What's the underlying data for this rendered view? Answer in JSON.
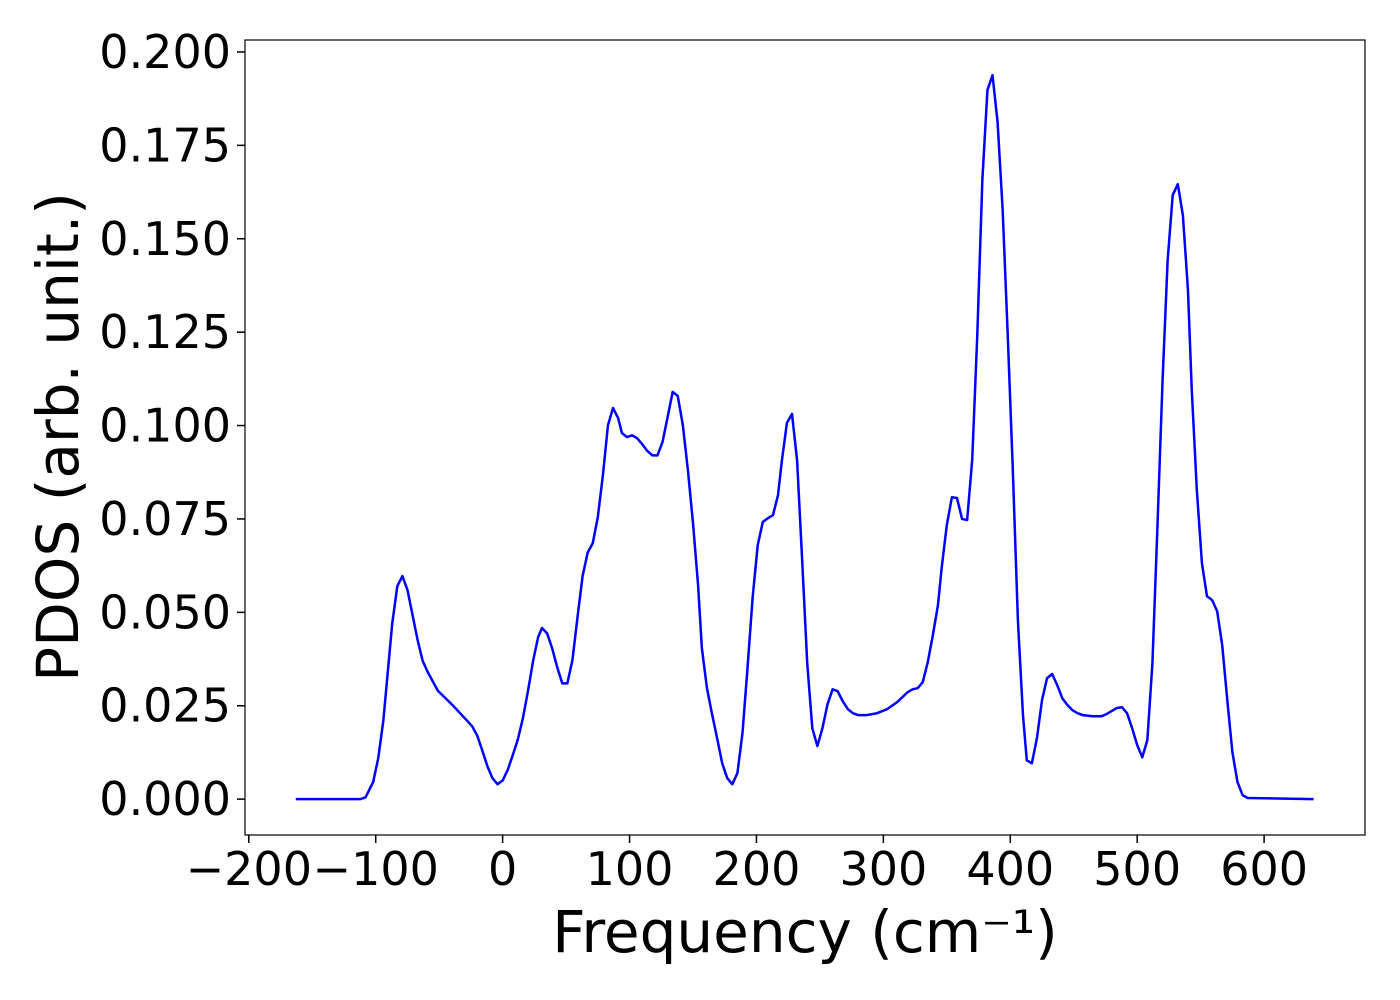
{
  "chart_data": {
    "type": "line",
    "xlabel": "Frequency (cm⁻¹)",
    "ylabel": "PDOS (arb. unit.)",
    "xlim": [
      -203,
      679.5
    ],
    "ylim": [
      -0.0096,
      0.2032
    ],
    "xticks": [
      {
        "value": -200,
        "label": "−200"
      },
      {
        "value": -100,
        "label": "−100"
      },
      0,
      100,
      200,
      300,
      400,
      500,
      600
    ],
    "yticks": [
      {
        "value": 0,
        "label": "0.000"
      },
      {
        "value": 0.025,
        "label": "0.025"
      },
      {
        "value": 0.05,
        "label": "0.050"
      },
      {
        "value": 0.075,
        "label": "0.075"
      },
      {
        "value": 0.1,
        "label": "0.100"
      },
      {
        "value": 0.125,
        "label": "0.125"
      },
      {
        "value": 0.15,
        "label": "0.150"
      },
      {
        "value": 0.175,
        "label": "0.175"
      },
      {
        "value": 0.2,
        "label": "0.200"
      }
    ],
    "x": [
      -163,
      -112,
      -108,
      -102,
      -98,
      -94,
      -87,
      -83,
      -79,
      -75,
      -67,
      -63,
      -59,
      -51,
      -39,
      -28,
      -24,
      -20,
      -16,
      -12,
      -8,
      -4,
      0,
      4,
      8,
      12,
      16,
      20,
      24,
      28,
      31,
      35,
      39,
      43,
      47,
      51,
      55,
      59,
      63,
      67,
      71,
      75,
      79,
      83,
      87,
      91,
      94,
      98,
      102,
      106,
      110,
      114,
      118,
      122,
      126,
      130,
      134,
      138,
      142,
      146,
      150,
      154,
      157,
      161,
      165,
      169,
      173,
      177,
      181,
      185,
      189,
      193,
      197,
      201,
      205,
      209,
      213,
      217,
      220,
      224,
      228,
      232,
      236,
      240,
      244,
      248,
      252,
      256,
      260,
      264,
      268,
      272,
      276,
      280,
      287,
      295,
      303,
      311,
      319,
      323,
      327,
      331,
      335,
      339,
      343,
      346,
      350,
      354,
      358,
      362,
      366,
      370,
      374,
      378,
      382,
      386,
      390,
      394,
      398,
      402,
      406,
      410,
      413,
      417,
      421,
      425,
      429,
      433,
      437,
      441,
      445,
      449,
      453,
      457,
      465,
      472,
      476,
      480,
      484,
      488,
      492,
      496,
      500,
      504,
      508,
      512,
      516,
      520,
      524,
      528,
      532,
      536,
      540,
      543,
      547,
      551,
      555,
      559,
      563,
      567,
      571,
      575,
      579,
      583,
      587,
      639
    ],
    "series": [
      {
        "color": "#0000ff",
        "values": [
          0,
          0,
          0.0005,
          0.0046,
          0.011,
          0.021,
          0.047,
          0.057,
          0.0597,
          0.056,
          0.0426,
          0.037,
          0.034,
          0.029,
          0.025,
          0.021,
          0.0195,
          0.017,
          0.013,
          0.0088,
          0.0056,
          0.004,
          0.005,
          0.0078,
          0.0118,
          0.016,
          0.0217,
          0.029,
          0.037,
          0.0434,
          0.0458,
          0.0444,
          0.0404,
          0.0353,
          0.031,
          0.031,
          0.0372,
          0.0487,
          0.0597,
          0.066,
          0.0685,
          0.0755,
          0.0867,
          0.1001,
          0.1047,
          0.102,
          0.098,
          0.0969,
          0.0974,
          0.0966,
          0.095,
          0.0932,
          0.092,
          0.092,
          0.0956,
          0.1023,
          0.109,
          0.1079,
          0.1001,
          0.088,
          0.0739,
          0.0573,
          0.0404,
          0.0297,
          0.0228,
          0.0163,
          0.0096,
          0.0056,
          0.004,
          0.007,
          0.0177,
          0.0353,
          0.054,
          0.068,
          0.0742,
          0.0752,
          0.076,
          0.0814,
          0.0905,
          0.1007,
          0.1031,
          0.0908,
          0.064,
          0.0364,
          0.019,
          0.0142,
          0.019,
          0.0254,
          0.0294,
          0.0289,
          0.0262,
          0.0241,
          0.023,
          0.0225,
          0.0225,
          0.023,
          0.0241,
          0.026,
          0.0286,
          0.0294,
          0.0297,
          0.0313,
          0.0367,
          0.0439,
          0.0519,
          0.0621,
          0.0734,
          0.0808,
          0.0806,
          0.075,
          0.0747,
          0.0908,
          0.1242,
          0.1657,
          0.1898,
          0.1938,
          0.1812,
          0.1577,
          0.1242,
          0.0881,
          0.0479,
          0.0225,
          0.0104,
          0.0096,
          0.0163,
          0.0265,
          0.0324,
          0.0335,
          0.0305,
          0.027,
          0.0252,
          0.0238,
          0.023,
          0.0225,
          0.0222,
          0.0222,
          0.0228,
          0.0236,
          0.0244,
          0.0246,
          0.023,
          0.019,
          0.0145,
          0.0112,
          0.0158,
          0.0364,
          0.0734,
          0.1122,
          0.1443,
          0.1617,
          0.1646,
          0.1563,
          0.1363,
          0.1095,
          0.0827,
          0.0632,
          0.0543,
          0.0533,
          0.0503,
          0.0412,
          0.0265,
          0.0126,
          0.0046,
          0.0011,
          0.0003,
          0
        ]
      }
    ]
  }
}
